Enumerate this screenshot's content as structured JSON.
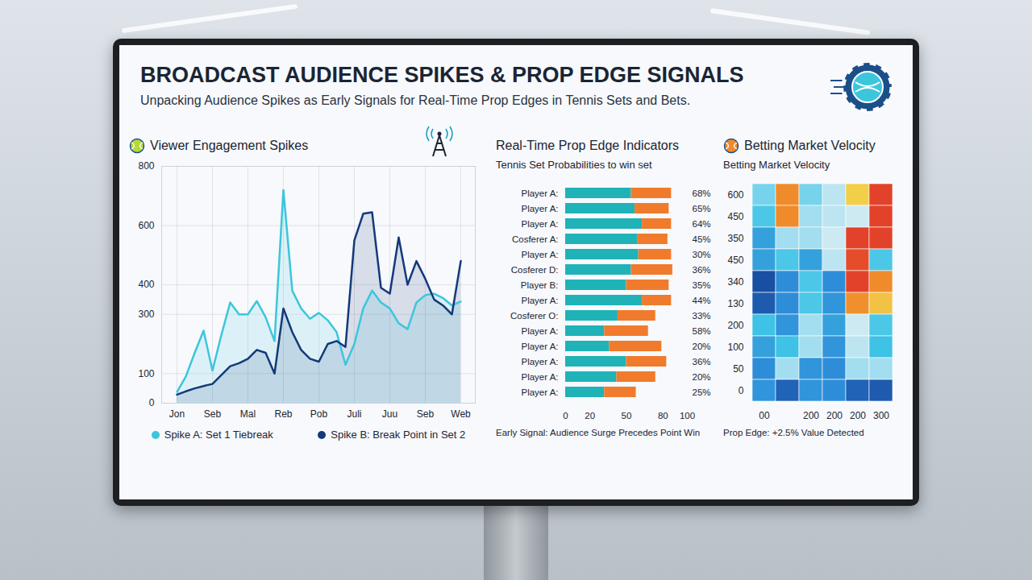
{
  "header": {
    "title": "BROADCAST AUDIENCE SPIKES & PROP EDGE SIGNALS",
    "subtitle": "Unpacking Audience Spikes as Early Signals for Real-Time Prop Edges in Tennis Sets and Bets."
  },
  "chart_data": [
    {
      "type": "line",
      "panel_title": "Viewer Engagement Spikes",
      "categories": [
        "Jon",
        null,
        null,
        null,
        "Seb",
        null,
        null,
        null,
        "Mal",
        null,
        null,
        null,
        "Reb",
        null,
        null,
        null,
        "Pob",
        null,
        null,
        null,
        "Juli",
        null,
        null,
        null,
        "Juu",
        null,
        null,
        null,
        "Seb",
        null,
        null,
        null,
        "Web"
      ],
      "series": [
        {
          "name": "Spike A: Set 1 Tiebreak",
          "color": "#3cc6dc",
          "values": [
            38,
            90,
            170,
            245,
            110,
            230,
            340,
            300,
            300,
            345,
            290,
            210,
            720,
            380,
            320,
            285,
            305,
            280,
            240,
            130,
            200,
            320,
            380,
            340,
            320,
            270,
            250,
            340,
            365,
            370,
            355,
            330,
            343
          ]
        },
        {
          "name": "Spike B: Break Point in Set 2",
          "color": "#14397a",
          "values": [
            29,
            40,
            50,
            58,
            65,
            95,
            125,
            135,
            150,
            180,
            170,
            100,
            320,
            240,
            180,
            150,
            140,
            200,
            210,
            190,
            550,
            640,
            645,
            390,
            370,
            560,
            400,
            480,
            420,
            350,
            330,
            300,
            480
          ]
        }
      ],
      "ylim": [
        0,
        800
      ],
      "yticks": [
        0,
        100,
        300,
        400,
        600,
        800
      ],
      "grid": true,
      "legend": "bottom"
    },
    {
      "type": "bar",
      "panel_title": "Real-Time Prop Edge Indicators",
      "title": "Tennis Set Probabilities to win set",
      "categories": [
        "Player A:",
        "Player A:",
        "Player A:",
        "Cosferer A:",
        "Player A:",
        "Cosferer D:",
        "Player B:",
        "Player A:",
        "Cosferer O:",
        "Player A:",
        "Player A:",
        "Player A:",
        "Player A:",
        "Player A:"
      ],
      "series": [
        {
          "color": "#1fb3b8",
          "values": [
            54,
            57,
            63,
            59,
            60,
            54,
            50,
            63,
            43,
            32,
            36,
            50,
            42,
            32
          ]
        },
        {
          "color": "#f07b2c",
          "values": [
            33,
            28,
            24,
            25,
            27,
            34,
            35,
            24,
            31,
            36,
            43,
            33,
            32,
            26
          ]
        }
      ],
      "probability_labels": [
        "68%",
        "65%",
        "64%",
        "45%",
        "30%",
        "36%",
        "35%",
        "44%",
        "33%",
        "58%",
        "20%",
        "36%",
        "20%",
        "25%"
      ],
      "xlim": [
        0,
        100
      ],
      "xticks": [
        0,
        20,
        50,
        80,
        100
      ],
      "orientation": "horizontal",
      "stacked": true,
      "annotation": "Early Signal: Audience Surge Precedes Point Win"
    },
    {
      "type": "heatmap",
      "panel_title": "Betting Market Velocity",
      "title": "Betting Market Velocity",
      "x_categories": [
        "00",
        null,
        "200",
        "200",
        "200",
        "300"
      ],
      "y_categories": [
        "600",
        "450",
        "350",
        "450",
        "340",
        "130",
        "200",
        "100",
        "50",
        "0"
      ],
      "cells": [
        [
          40,
          83,
          40,
          48,
          67,
          97
        ],
        [
          35,
          83,
          45,
          48,
          50,
          97
        ],
        [
          25,
          45,
          45,
          50,
          97,
          97
        ],
        [
          25,
          35,
          25,
          48,
          95,
          35
        ],
        [
          5,
          20,
          35,
          20,
          97,
          83
        ],
        [
          8,
          20,
          35,
          22,
          82,
          70
        ],
        [
          33,
          22,
          45,
          25,
          50,
          35
        ],
        [
          25,
          33,
          45,
          22,
          48,
          33
        ],
        [
          20,
          45,
          22,
          20,
          45,
          45
        ],
        [
          22,
          10,
          22,
          20,
          10,
          8
        ]
      ],
      "zlim": [
        0,
        100
      ],
      "annotation": "Prop Edge: +2.5% Value Detected"
    }
  ]
}
